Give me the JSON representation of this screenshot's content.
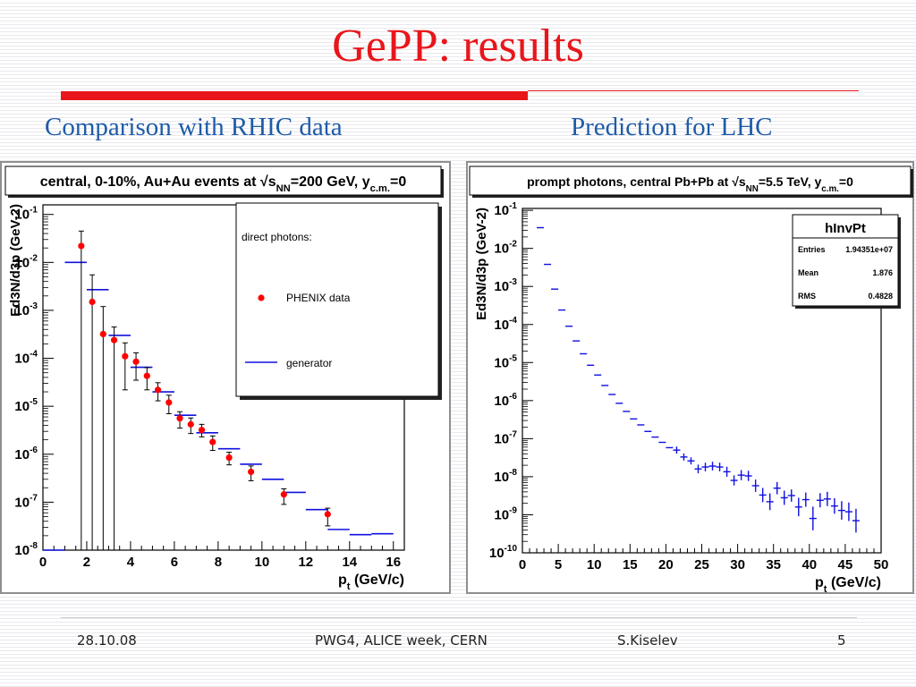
{
  "slide": {
    "title": "GePP: results",
    "left_subtitle": "Comparison with RHIC data",
    "right_subtitle": "Prediction for LHC"
  },
  "footer": {
    "date": "28.10.08",
    "event": "PWG4, ALICE week, CERN",
    "author": "S.Kiselev",
    "page": "5"
  },
  "colors": {
    "title": "#e8161b",
    "subtitle": "#1e5ba8",
    "data_red": "#ff0000",
    "generator_blue": "#1010e0"
  },
  "chart_data": [
    {
      "type": "scatter",
      "title": "central, 0-10%, Au+Au events at √sNN=200 GeV, yc.m.=0",
      "xlabel": "pt (GeV/c)",
      "ylabel": "Ed3N/d3p (GeV-2)",
      "xlim": [
        0,
        16.5
      ],
      "ylim_log10": [
        -8,
        -0.8
      ],
      "log_y": true,
      "x_ticks": [
        0,
        2,
        4,
        6,
        8,
        10,
        12,
        14,
        16
      ],
      "y_tick_exponents": [
        -8,
        -7,
        -6,
        -5,
        -4,
        -3,
        -2,
        -1
      ],
      "legend": {
        "placement": "top-right",
        "title": "direct photons:",
        "entries": [
          "PHENIX data",
          "generator"
        ]
      },
      "series": [
        {
          "name": "PHENIX data",
          "marker": "dot",
          "points": [
            {
              "x": 1.75,
              "y": 0.022,
              "lo": 1e-08,
              "hi": 0.045
            },
            {
              "x": 2.25,
              "y": 0.0015,
              "lo": 1e-08,
              "hi": 0.0055
            },
            {
              "x": 2.75,
              "y": 0.00032,
              "lo": 1e-08,
              "hi": 0.0012
            },
            {
              "x": 3.25,
              "y": 0.00024,
              "lo": 1e-08,
              "hi": 0.00045
            },
            {
              "x": 3.75,
              "y": 0.00011,
              "lo": 2.2e-05,
              "hi": 0.00021
            },
            {
              "x": 4.25,
              "y": 8.5e-05,
              "lo": 3.5e-05,
              "hi": 0.00013
            },
            {
              "x": 4.75,
              "y": 4.3e-05,
              "lo": 2.2e-05,
              "hi": 6.4e-05
            },
            {
              "x": 5.25,
              "y": 2.2e-05,
              "lo": 1.3e-05,
              "hi": 3.1e-05
            },
            {
              "x": 5.75,
              "y": 1.2e-05,
              "lo": 7e-06,
              "hi": 1.7e-05
            },
            {
              "x": 6.25,
              "y": 5.6e-06,
              "lo": 3.5e-06,
              "hi": 7.7e-06
            },
            {
              "x": 6.75,
              "y": 4.2e-06,
              "lo": 2.7e-06,
              "hi": 5.7e-06
            },
            {
              "x": 7.25,
              "y": 3.2e-06,
              "lo": 2.3e-06,
              "hi": 4.2e-06
            },
            {
              "x": 7.75,
              "y": 1.8e-06,
              "lo": 1.2e-06,
              "hi": 2.4e-06
            },
            {
              "x": 8.5,
              "y": 8.5e-07,
              "lo": 6e-07,
              "hi": 1.1e-06
            },
            {
              "x": 9.5,
              "y": 4.3e-07,
              "lo": 2.8e-07,
              "hi": 5.7e-07
            },
            {
              "x": 11,
              "y": 1.45e-07,
              "lo": 9e-08,
              "hi": 1.9e-07
            },
            {
              "x": 13,
              "y": 5.6e-08,
              "lo": 3.2e-08,
              "hi": 7.5e-08
            }
          ]
        },
        {
          "name": "generator",
          "marker": "hbar",
          "bins": [
            {
              "x0": 0,
              "x1": 1,
              "y": 1e-08
            },
            {
              "x0": 1,
              "x1": 2,
              "y": 0.01
            },
            {
              "x0": 2,
              "x1": 3,
              "y": 0.0027
            },
            {
              "x0": 3,
              "x1": 4,
              "y": 0.0003
            },
            {
              "x0": 4,
              "x1": 5,
              "y": 6.5e-05
            },
            {
              "x0": 5,
              "x1": 6,
              "y": 2e-05
            },
            {
              "x0": 6,
              "x1": 7,
              "y": 6.5e-06
            },
            {
              "x0": 7,
              "x1": 8,
              "y": 2.8e-06
            },
            {
              "x0": 8,
              "x1": 9,
              "y": 1.3e-06
            },
            {
              "x0": 9,
              "x1": 10,
              "y": 6.2e-07
            },
            {
              "x0": 10,
              "x1": 11,
              "y": 3e-07
            },
            {
              "x0": 11,
              "x1": 12,
              "y": 1.6e-07
            },
            {
              "x0": 12,
              "x1": 13,
              "y": 7e-08
            },
            {
              "x0": 13,
              "x1": 14,
              "y": 2.7e-08
            },
            {
              "x0": 14,
              "x1": 15,
              "y": 2.1e-08
            },
            {
              "x0": 15,
              "x1": 16,
              "y": 2.2e-08
            }
          ]
        }
      ]
    },
    {
      "type": "scatter",
      "title": "prompt photons, central Pb+Pb at √sNN=5.5 TeV, yc.m.=0",
      "xlabel": "pt (GeV/c)",
      "ylabel": "Ed3N/d3p (GeV-2)",
      "xlim": [
        0,
        50
      ],
      "ylim_log10": [
        -10,
        -0.95
      ],
      "log_y": true,
      "x_ticks": [
        0,
        5,
        10,
        15,
        20,
        25,
        30,
        35,
        40,
        45,
        50
      ],
      "y_tick_exponents": [
        -10,
        -9,
        -8,
        -7,
        -6,
        -5,
        -4,
        -3,
        -2,
        -1
      ],
      "stats_box": {
        "placement": "top-right",
        "name": "hInvPt",
        "rows": [
          {
            "label": "Entries",
            "value": "1.94351e+07"
          },
          {
            "label": "Mean",
            "value": "1.876"
          },
          {
            "label": "RMS",
            "value": "0.4828"
          }
        ]
      },
      "series": [
        {
          "name": "hInvPt",
          "marker": "hbar",
          "bin_width": 1,
          "points": [
            {
              "x": 2.5,
              "y": 0.035,
              "err": 0
            },
            {
              "x": 3.5,
              "y": 0.0038,
              "err": 0
            },
            {
              "x": 4.5,
              "y": 0.00085,
              "err": 0
            },
            {
              "x": 5.5,
              "y": 0.00024,
              "err": 0
            },
            {
              "x": 6.5,
              "y": 9e-05,
              "err": 0
            },
            {
              "x": 7.5,
              "y": 3.7e-05,
              "err": 0
            },
            {
              "x": 8.5,
              "y": 1.7e-05,
              "err": 0
            },
            {
              "x": 9.5,
              "y": 8.5e-06,
              "err": 0
            },
            {
              "x": 10.5,
              "y": 4.7e-06,
              "err": 0
            },
            {
              "x": 11.5,
              "y": 2.5e-06,
              "err": 0
            },
            {
              "x": 12.5,
              "y": 1.45e-06,
              "err": 0
            },
            {
              "x": 13.5,
              "y": 8.5e-07,
              "err": 0
            },
            {
              "x": 14.5,
              "y": 5.2e-07,
              "err": 0
            },
            {
              "x": 15.5,
              "y": 3.3e-07,
              "err": 0
            },
            {
              "x": 16.5,
              "y": 2.3e-07,
              "err": 0
            },
            {
              "x": 17.5,
              "y": 1.55e-07,
              "err": 0
            },
            {
              "x": 18.5,
              "y": 1.1e-07,
              "err": 0
            },
            {
              "x": 19.5,
              "y": 8e-08,
              "err": 0
            },
            {
              "x": 20.5,
              "y": 5.8e-08,
              "err": 0
            },
            {
              "x": 21.5,
              "y": 5e-08,
              "err": 0.08
            },
            {
              "x": 22.5,
              "y": 3.3e-08,
              "err": 0.08
            },
            {
              "x": 23.5,
              "y": 2.6e-08,
              "err": 0.08
            },
            {
              "x": 24.5,
              "y": 1.6e-08,
              "err": 0.1
            },
            {
              "x": 25.5,
              "y": 1.8e-08,
              "err": 0.1
            },
            {
              "x": 26.5,
              "y": 1.9e-08,
              "err": 0.1
            },
            {
              "x": 27.5,
              "y": 1.8e-08,
              "err": 0.1
            },
            {
              "x": 28.5,
              "y": 1.35e-08,
              "err": 0.12
            },
            {
              "x": 29.5,
              "y": 8e-09,
              "err": 0.12
            },
            {
              "x": 30.5,
              "y": 1.1e-08,
              "err": 0.12
            },
            {
              "x": 31.5,
              "y": 1.05e-08,
              "err": 0.12
            },
            {
              "x": 32.5,
              "y": 5.8e-09,
              "err": 0.15
            },
            {
              "x": 33.5,
              "y": 3.3e-09,
              "err": 0.18
            },
            {
              "x": 34.5,
              "y": 2.2e-09,
              "err": 0.22
            },
            {
              "x": 35.5,
              "y": 5e-09,
              "err": 0.15
            },
            {
              "x": 36.5,
              "y": 2.8e-09,
              "err": 0.18
            },
            {
              "x": 37.5,
              "y": 3.2e-09,
              "err": 0.15
            },
            {
              "x": 38.5,
              "y": 1.6e-09,
              "err": 0.25
            },
            {
              "x": 39.5,
              "y": 2.5e-09,
              "err": 0.18
            },
            {
              "x": 40.5,
              "y": 8e-10,
              "err": 0.35
            },
            {
              "x": 41.5,
              "y": 2.4e-09,
              "err": 0.18
            },
            {
              "x": 42.5,
              "y": 2.6e-09,
              "err": 0.18
            },
            {
              "x": 43.5,
              "y": 1.7e-09,
              "err": 0.2
            },
            {
              "x": 44.5,
              "y": 1.3e-09,
              "err": 0.25
            },
            {
              "x": 45.5,
              "y": 1.2e-09,
              "err": 0.25
            },
            {
              "x": 46.5,
              "y": 7e-10,
              "err": 0.35
            }
          ]
        }
      ]
    }
  ]
}
